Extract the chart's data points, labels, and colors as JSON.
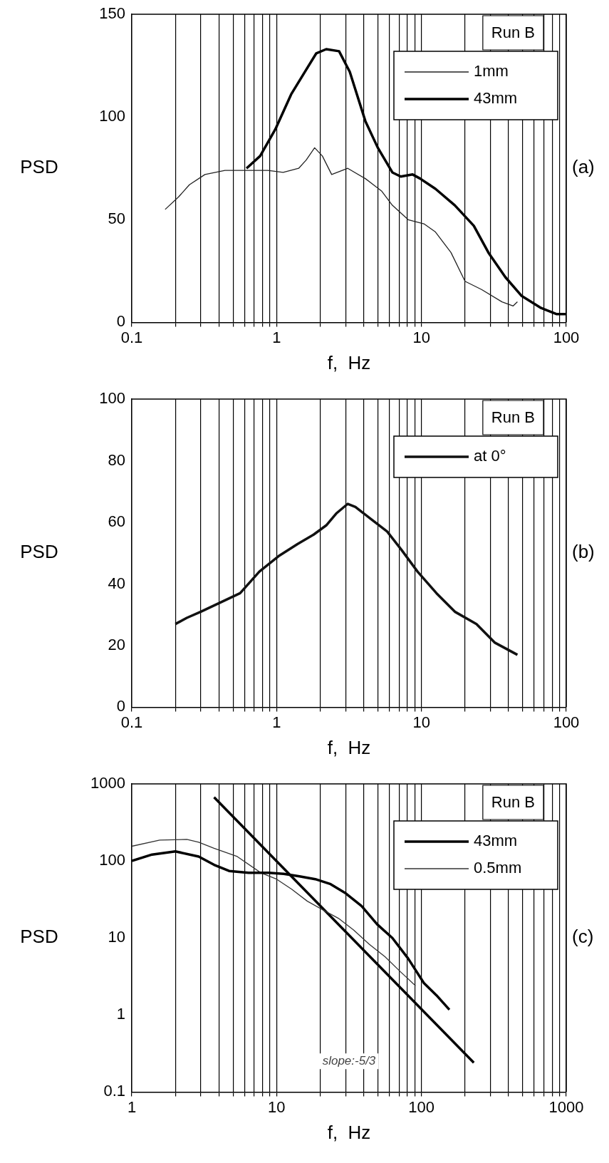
{
  "chart_data": [
    {
      "type": "line",
      "xlabel": "f,  Hz",
      "ylabel": "PSD",
      "legend_title": "Run B",
      "legend": "top right",
      "log": "x",
      "grid": "x",
      "annotations": [
        "(a)"
      ],
      "xlim": [
        0.1,
        100
      ],
      "ylim": [
        0,
        150
      ],
      "yticks": [
        0,
        50,
        100,
        150
      ],
      "xticks": [
        0.1,
        {
          "value": 0.2,
          "label": null
        },
        {
          "value": 0.3,
          "label": null
        },
        {
          "value": 0.4,
          "label": null
        },
        {
          "value": 0.5,
          "label": null
        },
        {
          "value": 0.6,
          "label": null
        },
        {
          "value": 0.7,
          "label": null
        },
        {
          "value": 0.8,
          "label": null
        },
        {
          "value": 0.9,
          "label": null
        },
        1,
        {
          "value": 2,
          "label": null
        },
        {
          "value": 3,
          "label": null
        },
        {
          "value": 4,
          "label": null
        },
        {
          "value": 5,
          "label": null
        },
        {
          "value": 6,
          "label": null
        },
        {
          "value": 7,
          "label": null
        },
        {
          "value": 8,
          "label": null
        },
        {
          "value": 9,
          "label": null
        },
        10,
        {
          "value": 20,
          "label": null
        },
        {
          "value": 30,
          "label": null
        },
        {
          "value": 40,
          "label": null
        },
        {
          "value": 50,
          "label": null
        },
        {
          "value": 60,
          "label": null
        },
        {
          "value": 70,
          "label": null
        },
        {
          "value": 80,
          "label": null
        },
        {
          "value": 90,
          "label": null
        },
        100
      ],
      "series": [
        {
          "name": "1mm",
          "color": "#222222",
          "x": [
            0.17,
            0.21,
            0.25,
            0.32,
            0.44,
            0.6,
            0.87,
            1.11,
            1.42,
            1.6,
            1.83,
            2.07,
            2.4,
            3.1,
            4.1,
            5.3,
            6.3,
            8.1,
            10.4,
            12.5,
            16,
            20,
            26,
            36,
            43,
            46
          ],
          "values": [
            55,
            61,
            67,
            72,
            74,
            74,
            74,
            73,
            75,
            79,
            85,
            81,
            72,
            75,
            70,
            64,
            57,
            50,
            48,
            44,
            34,
            20,
            16,
            10,
            8,
            10
          ]
        },
        {
          "name": "43mm",
          "color": "#000000",
          "x": [
            0.62,
            0.77,
            0.98,
            1.26,
            1.6,
            1.88,
            2.2,
            2.7,
            3.2,
            4.1,
            5,
            6.3,
            7.2,
            8.7,
            9.8,
            12.5,
            17,
            23,
            29,
            38,
            49,
            67,
            86,
            100
          ],
          "values": [
            75,
            81,
            94,
            111,
            123,
            131,
            133,
            132,
            122,
            98,
            85,
            73,
            71,
            72,
            70,
            65,
            57,
            47,
            34,
            22,
            13,
            7,
            4,
            4
          ]
        }
      ]
    },
    {
      "type": "line",
      "xlabel": "f,  Hz",
      "ylabel": "PSD",
      "legend_title": "Run B",
      "legend": "top right",
      "log": "x",
      "grid": "x",
      "annotations": [
        "(b)"
      ],
      "xlim": [
        0.1,
        100
      ],
      "ylim": [
        0,
        100
      ],
      "yticks": [
        0,
        20,
        40,
        60,
        80,
        100
      ],
      "xticks": [
        0.1,
        {
          "value": 0.2,
          "label": null
        },
        {
          "value": 0.3,
          "label": null
        },
        {
          "value": 0.4,
          "label": null
        },
        {
          "value": 0.5,
          "label": null
        },
        {
          "value": 0.6,
          "label": null
        },
        {
          "value": 0.7,
          "label": null
        },
        {
          "value": 0.8,
          "label": null
        },
        {
          "value": 0.9,
          "label": null
        },
        1,
        {
          "value": 2,
          "label": null
        },
        {
          "value": 3,
          "label": null
        },
        {
          "value": 4,
          "label": null
        },
        {
          "value": 5,
          "label": null
        },
        {
          "value": 6,
          "label": null
        },
        {
          "value": 7,
          "label": null
        },
        {
          "value": 8,
          "label": null
        },
        {
          "value": 9,
          "label": null
        },
        10,
        {
          "value": 20,
          "label": null
        },
        {
          "value": 30,
          "label": null
        },
        {
          "value": 40,
          "label": null
        },
        {
          "value": 50,
          "label": null
        },
        {
          "value": 60,
          "label": null
        },
        {
          "value": 70,
          "label": null
        },
        {
          "value": 80,
          "label": null
        },
        {
          "value": 90,
          "label": null
        },
        100
      ],
      "series": [
        {
          "name": "at 0°",
          "color": "#111111",
          "x": [
            0.2,
            0.24,
            0.3,
            0.41,
            0.56,
            0.76,
            1.03,
            1.4,
            1.8,
            2.2,
            2.6,
            3.1,
            3.5,
            4.5,
            5.8,
            7.3,
            9.4,
            12.7,
            17,
            24,
            32,
            46
          ],
          "values": [
            27,
            29,
            31,
            34,
            37,
            44,
            49,
            53,
            56,
            59,
            63,
            66,
            65,
            61,
            57,
            51,
            44,
            37,
            31,
            27,
            21,
            17
          ]
        }
      ]
    },
    {
      "type": "line",
      "xlabel": "f,  Hz",
      "ylabel": "PSD",
      "legend_title": "Run B",
      "legend": "top right",
      "log": "xy",
      "grid": "x",
      "annotations": [
        "(c)",
        "slope:-5/3"
      ],
      "xlim": [
        1,
        1000
      ],
      "ylim": [
        0.1,
        1000
      ],
      "yticks": [
        0.1,
        1,
        10,
        100,
        1000
      ],
      "xticks": [
        1,
        {
          "value": 2,
          "label": null
        },
        {
          "value": 3,
          "label": null
        },
        {
          "value": 4,
          "label": null
        },
        {
          "value": 5,
          "label": null
        },
        {
          "value": 6,
          "label": null
        },
        {
          "value": 7,
          "label": null
        },
        {
          "value": 8,
          "label": null
        },
        {
          "value": 9,
          "label": null
        },
        10,
        {
          "value": 20,
          "label": null
        },
        {
          "value": 30,
          "label": null
        },
        {
          "value": 40,
          "label": null
        },
        {
          "value": 50,
          "label": null
        },
        {
          "value": 60,
          "label": null
        },
        {
          "value": 70,
          "label": null
        },
        {
          "value": 80,
          "label": null
        },
        {
          "value": 90,
          "label": null
        },
        100,
        {
          "value": 200,
          "label": null
        },
        {
          "value": 300,
          "label": null
        },
        {
          "value": 400,
          "label": null
        },
        {
          "value": 500,
          "label": null
        },
        {
          "value": 600,
          "label": null
        },
        {
          "value": 700,
          "label": null
        },
        {
          "value": 800,
          "label": null
        },
        {
          "value": 900,
          "label": null
        },
        1000
      ],
      "series": [
        {
          "name": "43mm",
          "color": "#000000",
          "x": [
            1,
            1.38,
            2,
            2.9,
            3.7,
            4.7,
            6.4,
            8.8,
            11.2,
            14.4,
            18.5,
            23.6,
            30,
            38.6,
            49.5,
            63,
            81,
            104,
            127,
            156
          ],
          "values": [
            100,
            121,
            133,
            114,
            89,
            74,
            70,
            70,
            68,
            63,
            58,
            50,
            38,
            26,
            15,
            10,
            5.4,
            2.6,
            1.8,
            1.17
          ]
        },
        {
          "name": "0.5mm",
          "color": "#333333",
          "x": [
            1,
            1.56,
            2.4,
            2.9,
            3.7,
            5.35,
            7.8,
            10,
            12.7,
            16.3,
            21,
            26.7,
            34,
            43.6,
            56,
            71,
            91
          ],
          "values": [
            155,
            186,
            190,
            175,
            146,
            114,
            70,
            58,
            43,
            30,
            23,
            18,
            12.7,
            8.3,
            5.7,
            3.7,
            2.4
          ]
        },
        {
          "type": "line",
          "color": "#000000",
          "x": [
            3.7,
            230
          ],
          "values": [
            670,
            0.24
          ]
        }
      ]
    }
  ]
}
